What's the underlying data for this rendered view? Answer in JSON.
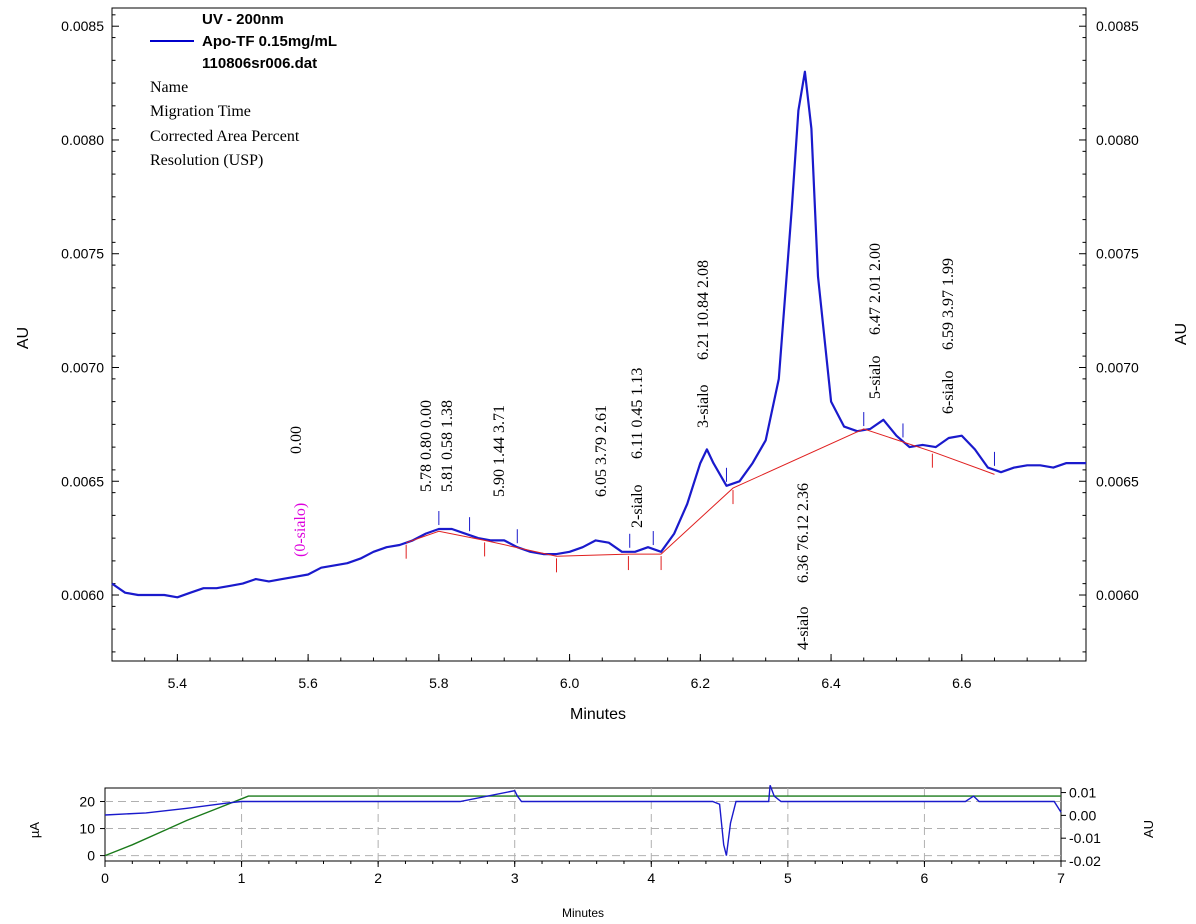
{
  "chart_data": [
    {
      "type": "line",
      "legend": {
        "lines": [
          "UV - 200nm",
          "Apo-TF 0.15mg/mL",
          "110806sr006.dat"
        ],
        "color": "#0000cc",
        "fields": [
          "Name",
          "Migration Time",
          "Corrected Area Percent",
          "Resolution (USP)"
        ]
      },
      "xlabel": "Minutes",
      "ylabel": "AU",
      "ylabel_right": "AU",
      "xlim": [
        5.3,
        6.79
      ],
      "ylim": [
        0.00571,
        0.00858
      ],
      "x_ticks": [
        "5.4",
        "5.6",
        "5.8",
        "6.0",
        "6.2",
        "6.4",
        "6.6"
      ],
      "y_ticks": [
        "0.0060",
        "0.0065",
        "0.0070",
        "0.0075",
        "0.0080",
        "0.0085"
      ],
      "series_color": "#1a1acc",
      "baseline_color": "#e02020",
      "series": [
        {
          "x": [
            5.3,
            5.32,
            5.34,
            5.36,
            5.38,
            5.4,
            5.42,
            5.44,
            5.46,
            5.48,
            5.5,
            5.52,
            5.54,
            5.56,
            5.58,
            5.6,
            5.62,
            5.64,
            5.66,
            5.68,
            5.7,
            5.72,
            5.74,
            5.76,
            5.78,
            5.8,
            5.82,
            5.84,
            5.86,
            5.88,
            5.9,
            5.92,
            5.94,
            5.96,
            5.98,
            6.0,
            6.02,
            6.04,
            6.06,
            6.08,
            6.1,
            6.12,
            6.14,
            6.16,
            6.18,
            6.2,
            6.21,
            6.22,
            6.24,
            6.26,
            6.28,
            6.3,
            6.32,
            6.34,
            6.35,
            6.36,
            6.37,
            6.38,
            6.4,
            6.42,
            6.44,
            6.46,
            6.48,
            6.5,
            6.52,
            6.54,
            6.56,
            6.58,
            6.6,
            6.62,
            6.64,
            6.66,
            6.68,
            6.7,
            6.72,
            6.74,
            6.76,
            6.79
          ],
          "y": [
            0.00605,
            0.00601,
            0.006,
            0.006,
            0.006,
            0.00599,
            0.00601,
            0.00603,
            0.00603,
            0.00604,
            0.00605,
            0.00607,
            0.00606,
            0.00607,
            0.00608,
            0.00609,
            0.00612,
            0.00613,
            0.00614,
            0.00616,
            0.00619,
            0.00621,
            0.00622,
            0.00624,
            0.00627,
            0.00629,
            0.00629,
            0.00627,
            0.00625,
            0.00624,
            0.00624,
            0.00621,
            0.00619,
            0.00618,
            0.00618,
            0.00619,
            0.00621,
            0.00624,
            0.00623,
            0.00619,
            0.00619,
            0.00621,
            0.00619,
            0.00627,
            0.0064,
            0.00658,
            0.00664,
            0.00658,
            0.00648,
            0.0065,
            0.00658,
            0.00668,
            0.00695,
            0.0077,
            0.00813,
            0.0083,
            0.00805,
            0.0074,
            0.00685,
            0.00674,
            0.00672,
            0.00673,
            0.00677,
            0.0067,
            0.00665,
            0.00666,
            0.00665,
            0.00669,
            0.0067,
            0.00664,
            0.00656,
            0.00654,
            0.00656,
            0.00657,
            0.00657,
            0.00656,
            0.00658,
            0.00658
          ]
        },
        {
          "name": "baseline",
          "x": [
            5.75,
            5.8,
            5.87,
            5.98,
            6.09,
            6.14,
            6.25,
            6.45,
            6.555,
            6.65
          ],
          "y": [
            0.00623,
            0.00628,
            0.00624,
            0.00617,
            0.00618,
            0.00618,
            0.00647,
            0.00673,
            0.00663,
            0.00653
          ]
        }
      ],
      "peaks": [
        {
          "x": 5.58,
          "label": "(0-sialo)",
          "values": [
            "0.00"
          ],
          "color": "#dd00dd"
        },
        {
          "x": 5.8,
          "label": "",
          "values": [
            "5.78  0.80  0.00",
            "5.81  0.58  1.38"
          ]
        },
        {
          "x": 5.9,
          "label": "",
          "values": [
            "5.90  1.44  3.71"
          ]
        },
        {
          "x": 6.05,
          "label": "",
          "values": [
            "6.05  3.79  2.61"
          ]
        },
        {
          "x": 6.11,
          "label": "2-sialo",
          "values": [
            "6.11  0.45  1.13"
          ]
        },
        {
          "x": 6.21,
          "label": "3-sialo",
          "values": [
            "6.21  10.84  2.08"
          ]
        },
        {
          "x": 6.36,
          "label": "4-sialo",
          "values": [
            "6.36  76.12  2.36"
          ]
        },
        {
          "x": 6.47,
          "label": "5-sialo",
          "values": [
            "6.47  2.01  2.00"
          ]
        },
        {
          "x": 6.59,
          "label": "6-sialo",
          "values": [
            "6.59  3.97  1.99"
          ]
        }
      ],
      "blue_markers_x": [
        5.8,
        5.847,
        5.92,
        6.092,
        6.128,
        6.24,
        6.45,
        6.51,
        6.65
      ],
      "red_markers_x": [
        5.75,
        5.87,
        5.98,
        6.09,
        6.14,
        6.25,
        6.555
      ]
    },
    {
      "type": "line",
      "xlabel": "Minutes",
      "ylabel": "µA",
      "ylabel_right": "AU",
      "xlim": [
        0,
        7
      ],
      "ylim": [
        -2,
        25
      ],
      "ylim_right": [
        -0.02,
        0.012
      ],
      "x_ticks": [
        "0",
        "1",
        "2",
        "3",
        "4",
        "5",
        "6",
        "7"
      ],
      "y_ticks_left": [
        "0",
        "10",
        "20"
      ],
      "y_ticks_right": [
        "0.01",
        "0.00",
        "-0.01",
        "-0.02"
      ],
      "grid": true,
      "series": [
        {
          "color": "#1a7a1a",
          "x": [
            0,
            0.2,
            0.4,
            0.6,
            0.8,
            1.0,
            1.05,
            7.0
          ],
          "y": [
            0,
            4,
            8.5,
            13,
            17,
            21,
            22,
            22
          ]
        },
        {
          "color": "#1a1acc",
          "x": [
            0,
            0.3,
            0.6,
            0.9,
            1.0,
            1.05,
            2.6,
            3.0,
            3.02,
            3.05,
            4.45,
            4.5,
            4.53,
            4.55,
            4.58,
            4.62,
            4.86,
            4.87,
            4.9,
            4.95,
            6.3,
            6.36,
            6.4,
            6.95,
            7.0
          ],
          "y": [
            15,
            15.8,
            17.5,
            19.5,
            20,
            20,
            20,
            24,
            22,
            20,
            20,
            19,
            4,
            0,
            12,
            20,
            20,
            26,
            22,
            20,
            20,
            22,
            20,
            20,
            16
          ]
        }
      ]
    }
  ]
}
